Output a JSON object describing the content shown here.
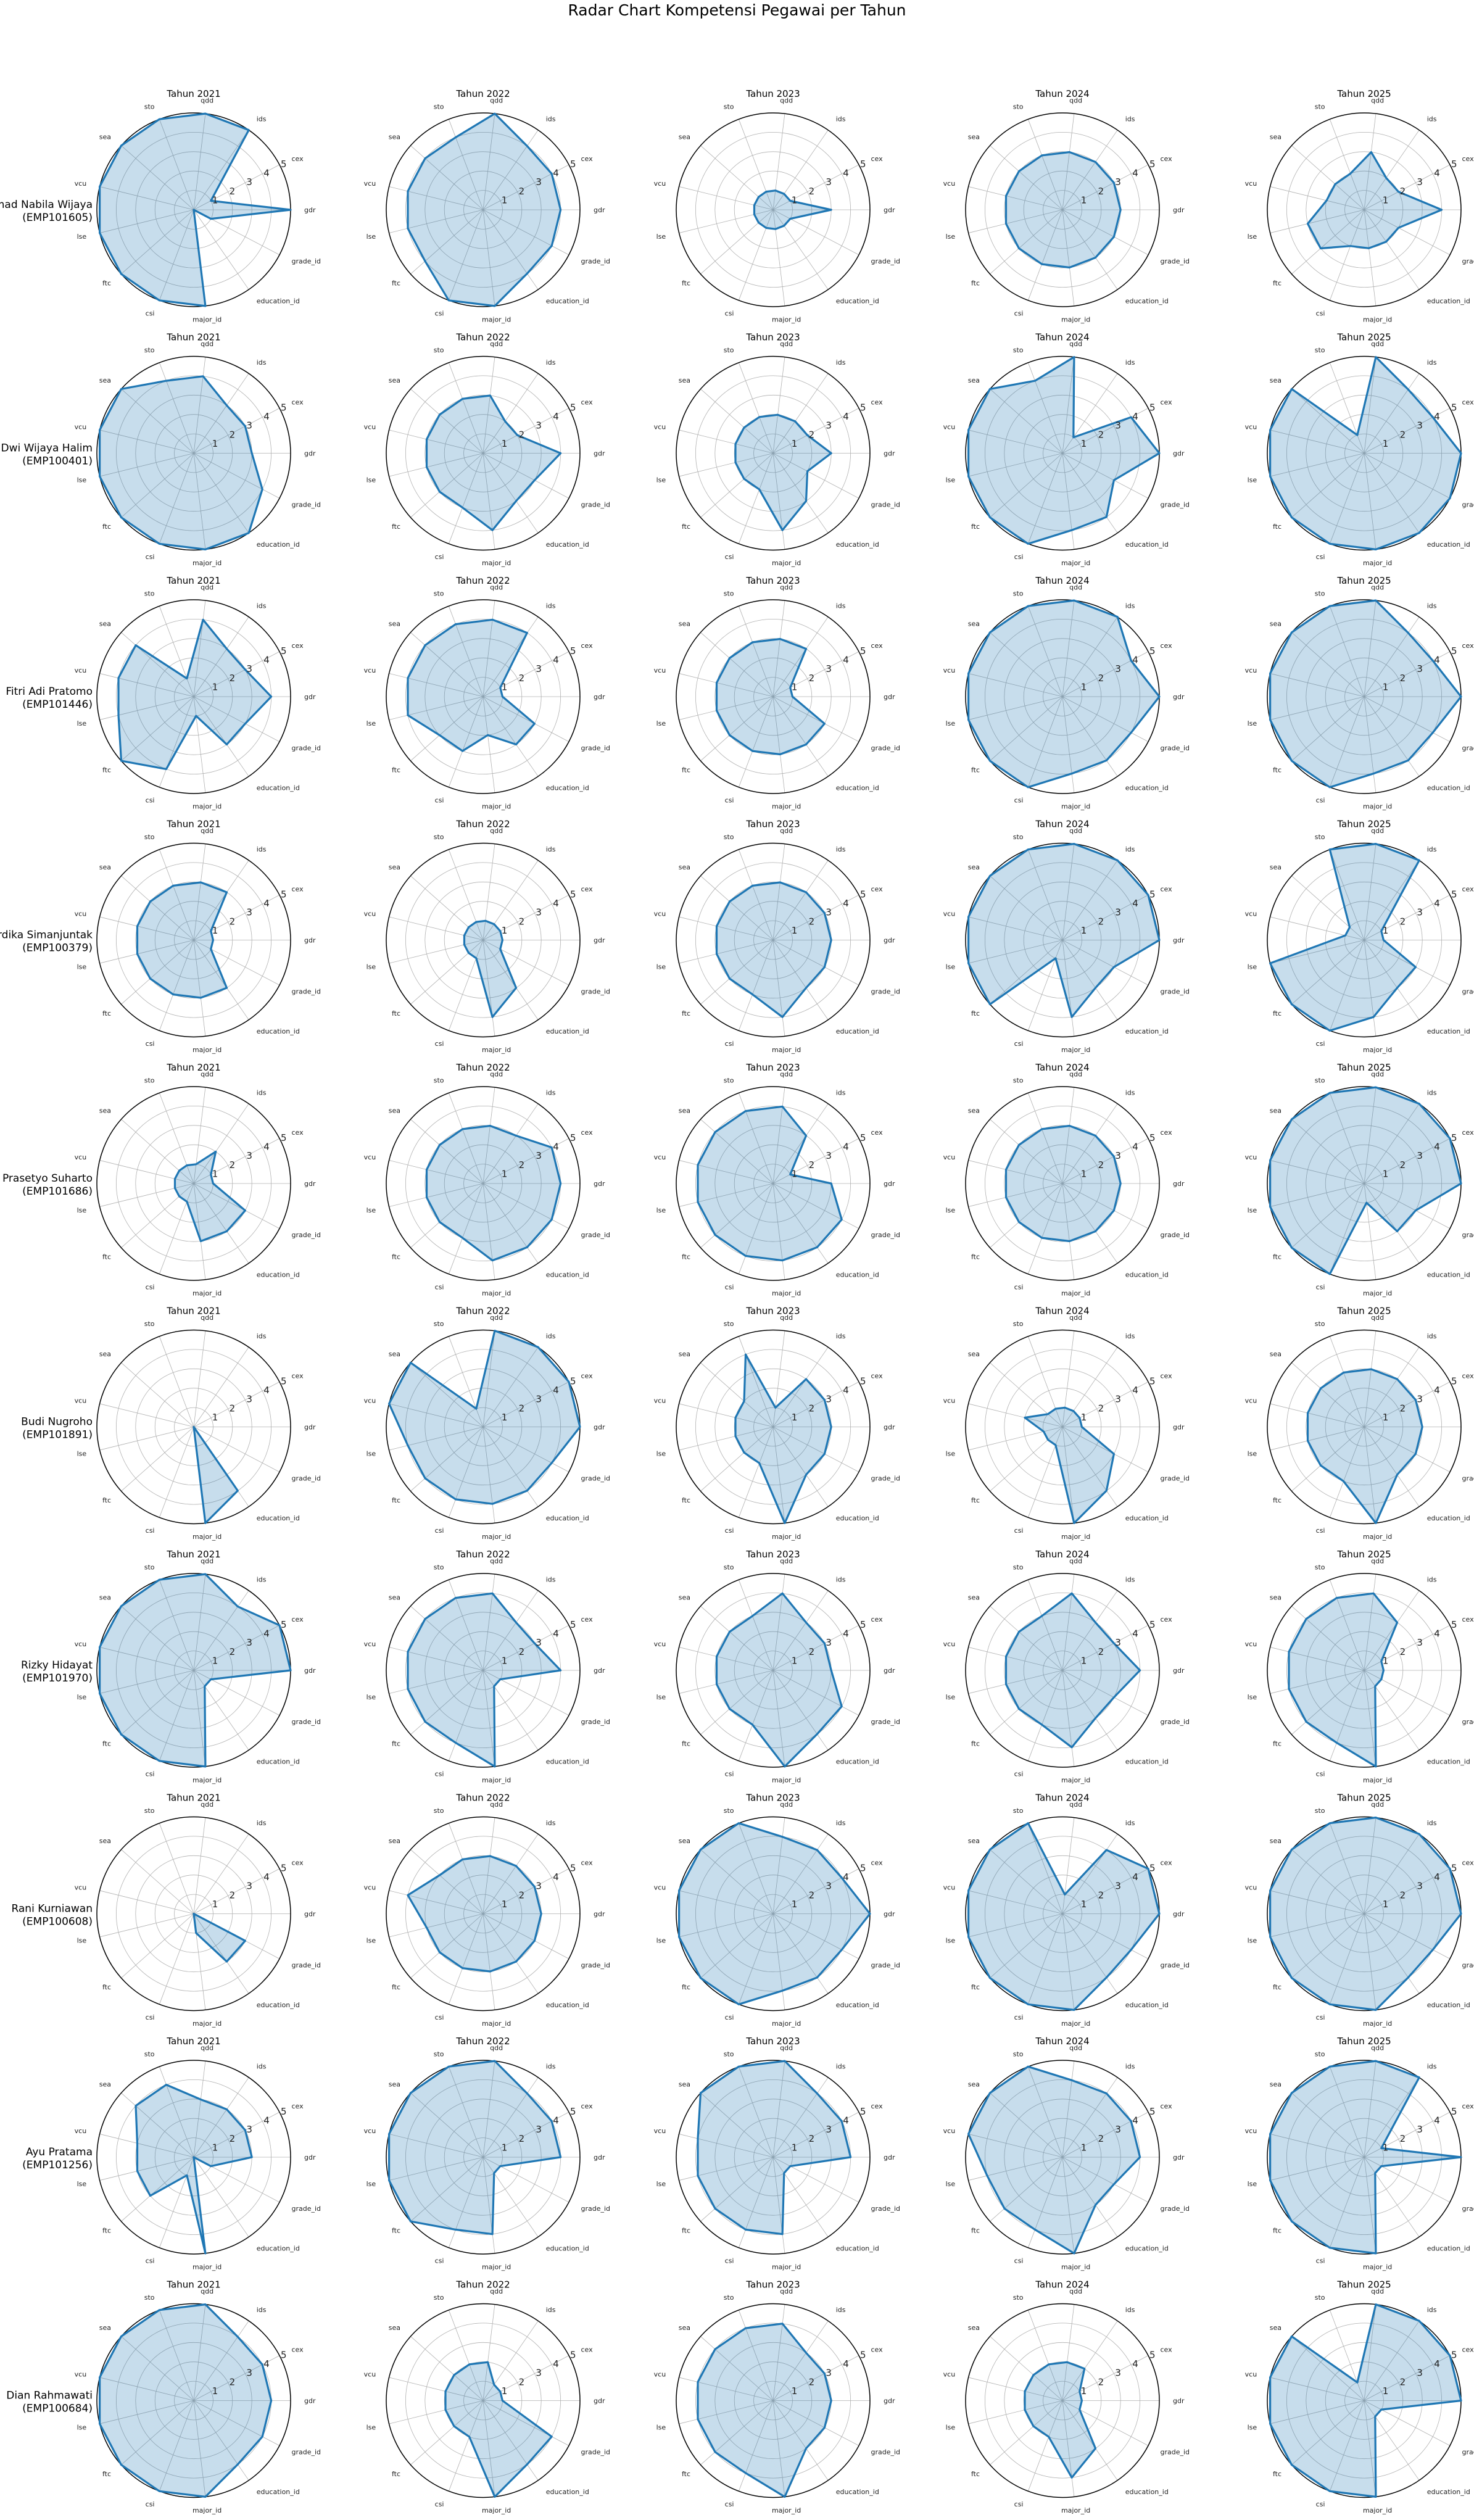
{
  "title": "Radar Chart Kompetensi Pegawai per Tahun",
  "chart_data": {
    "type": "radar",
    "axes": [
      "gdr",
      "cex",
      "ids",
      "qdd",
      "sto",
      "sea",
      "vcu",
      "lse",
      "ftc",
      "csi",
      "major_id",
      "education_id",
      "grade_id"
    ],
    "rlim": [
      0,
      5
    ],
    "radial_ticks": [
      "1",
      "2",
      "3",
      "4",
      "5"
    ],
    "grid": true,
    "colors": {
      "line": "#1f77b4",
      "fill": "#1f77b4"
    },
    "years": [
      "Tahun 2021",
      "Tahun 2022",
      "Tahun 2023",
      "Tahun 2024",
      "Tahun 2025"
    ],
    "employees": [
      {
        "name": "Ahmad Nabila Wijaya",
        "id": "(EMP101605)",
        "values": [
          [
            5.0,
            1.0,
            5.0,
            5.0,
            5.0,
            5.0,
            5.0,
            5.0,
            5.0,
            5.0,
            5.0,
            0.0,
            1.0
          ],
          [
            4.0,
            4.0,
            4.0,
            5.0,
            4.0,
            4.0,
            4.0,
            4.0,
            4.0,
            5.0,
            5.0,
            4.0,
            4.0
          ],
          [
            3.0,
            1.0,
            1.0,
            1.0,
            1.0,
            1.0,
            1.0,
            1.0,
            1.0,
            1.0,
            1.0,
            1.0,
            1.0
          ],
          [
            3.0,
            3.0,
            3.0,
            3.0,
            3.0,
            3.0,
            3.0,
            3.0,
            3.0,
            3.0,
            3.0,
            3.0,
            3.0
          ],
          [
            4.0,
            2.0,
            2.0,
            3.0,
            2.0,
            2.0,
            2.0,
            3.0,
            3.0,
            2.0,
            2.0,
            2.0,
            2.0
          ]
        ]
      },
      {
        "name": "Dwi Wijaya Halim",
        "id": "(EMP100401)",
        "values": [
          [
            3.0,
            3.0,
            3.0,
            4.0,
            4.0,
            5.0,
            5.0,
            5.0,
            5.0,
            5.0,
            5.0,
            5.0,
            4.0
          ],
          [
            4.0,
            2.0,
            2.0,
            3.0,
            3.0,
            3.0,
            3.0,
            3.0,
            3.0,
            3.0,
            4.0,
            3.0,
            3.0
          ],
          [
            3.0,
            2.0,
            2.0,
            2.0,
            2.0,
            2.0,
            2.0,
            2.0,
            2.0,
            2.0,
            4.0,
            3.0,
            2.0
          ],
          [
            5.0,
            4.0,
            1.0,
            5.0,
            4.0,
            5.0,
            5.0,
            5.0,
            5.0,
            5.0,
            4.0,
            4.0,
            3.0
          ],
          [
            5.0,
            4.0,
            4.0,
            5.0,
            1.0,
            5.0,
            5.0,
            5.0,
            5.0,
            5.0,
            5.0,
            5.0,
            5.0
          ]
        ]
      },
      {
        "name": "Fitri Adi Pratomo",
        "id": "(EMP101446)",
        "values": [
          [
            4.0,
            3.0,
            3.0,
            4.0,
            1.0,
            4.0,
            4.0,
            4.0,
            5.0,
            4.0,
            1.0,
            3.0,
            3.0
          ],
          [
            1.0,
            1.0,
            4.0,
            4.0,
            4.0,
            4.0,
            4.0,
            4.0,
            3.0,
            3.0,
            2.0,
            3.0,
            3.0
          ],
          [
            1.0,
            1.0,
            3.0,
            3.0,
            3.0,
            3.0,
            3.0,
            3.0,
            3.0,
            3.0,
            3.0,
            3.0,
            3.0
          ],
          [
            5.0,
            4.0,
            5.0,
            5.0,
            5.0,
            5.0,
            5.0,
            5.0,
            5.0,
            5.0,
            4.0,
            4.0,
            4.0
          ],
          [
            5.0,
            4.0,
            4.0,
            5.0,
            5.0,
            5.0,
            5.0,
            5.0,
            5.0,
            5.0,
            4.0,
            4.0,
            4.0
          ]
        ]
      },
      {
        "name": "Ayu Mahardika Simanjuntak",
        "id": "(EMP100379)",
        "values": [
          [
            1.0,
            1.0,
            3.0,
            3.0,
            3.0,
            3.0,
            3.0,
            3.0,
            3.0,
            3.0,
            3.0,
            3.0,
            1.0
          ],
          [
            1.0,
            1.0,
            1.0,
            1.0,
            1.0,
            1.0,
            1.0,
            1.0,
            1.0,
            1.0,
            4.0,
            3.0,
            1.0
          ],
          [
            3.0,
            3.0,
            3.0,
            3.0,
            3.0,
            3.0,
            3.0,
            3.0,
            3.0,
            3.0,
            4.0,
            3.0,
            3.0
          ],
          [
            5.0,
            5.0,
            5.0,
            5.0,
            5.0,
            5.0,
            5.0,
            5.0,
            5.0,
            1.0,
            4.0,
            3.0,
            3.0
          ],
          [
            1.0,
            1.0,
            5.0,
            5.0,
            5.0,
            1.0,
            1.0,
            5.0,
            5.0,
            5.0,
            4.0,
            3.0,
            3.0
          ]
        ]
      },
      {
        "name": "Prasetyo Suharto",
        "id": "(EMP101686)",
        "values": [
          [
            1.0,
            1.0,
            2.0,
            1.0,
            1.0,
            1.0,
            1.0,
            1.0,
            1.0,
            1.0,
            3.0,
            3.0,
            3.0
          ],
          [
            4.0,
            4.0,
            3.0,
            3.0,
            3.0,
            3.0,
            3.0,
            3.0,
            3.0,
            3.0,
            4.0,
            4.0,
            4.0
          ],
          [
            3.0,
            1.0,
            3.0,
            4.0,
            4.0,
            4.0,
            4.0,
            4.0,
            4.0,
            4.0,
            4.0,
            4.0,
            4.0
          ],
          [
            3.0,
            3.0,
            3.0,
            3.0,
            3.0,
            3.0,
            3.0,
            3.0,
            3.0,
            3.0,
            3.0,
            3.0,
            3.0
          ],
          [
            5.0,
            5.0,
            5.0,
            5.0,
            5.0,
            5.0,
            5.0,
            5.0,
            5.0,
            5.0,
            1.0,
            3.0,
            3.0
          ]
        ]
      },
      {
        "name": "Budi Nugroho",
        "id": "(EMP101891)",
        "values": [
          [
            0.0,
            0.0,
            0.0,
            0.0,
            0.0,
            0.0,
            0.0,
            0.0,
            0.0,
            0.0,
            5.0,
            4.0,
            0.0
          ],
          [
            5.0,
            5.0,
            5.0,
            5.0,
            1.0,
            5.0,
            5.0,
            4.0,
            4.0,
            4.0,
            4.0,
            4.0,
            4.0
          ],
          [
            3.0,
            3.0,
            3.0,
            1.0,
            4.0,
            2.0,
            2.0,
            2.0,
            2.0,
            2.0,
            5.0,
            3.0,
            3.0
          ],
          [
            1.0,
            1.0,
            1.0,
            1.0,
            1.0,
            1.0,
            2.0,
            1.0,
            1.0,
            1.0,
            5.0,
            4.0,
            3.0
          ],
          [
            3.0,
            3.0,
            3.0,
            3.0,
            3.0,
            3.0,
            3.0,
            3.0,
            3.0,
            3.0,
            5.0,
            3.0,
            3.0
          ]
        ]
      },
      {
        "name": "Rizky Hidayat",
        "id": "(EMP101970)",
        "values": [
          [
            5.0,
            5.0,
            4.0,
            5.0,
            5.0,
            5.0,
            5.0,
            5.0,
            5.0,
            5.0,
            5.0,
            1.0,
            1.0
          ],
          [
            4.0,
            3.0,
            3.0,
            4.0,
            4.0,
            4.0,
            4.0,
            4.0,
            4.0,
            4.0,
            5.0,
            1.0,
            1.0
          ],
          [
            3.0,
            3.0,
            3.0,
            4.0,
            3.0,
            3.0,
            3.0,
            3.0,
            3.0,
            3.0,
            5.0,
            4.0,
            4.0
          ],
          [
            4.0,
            3.0,
            3.0,
            4.0,
            3.0,
            3.0,
            3.0,
            3.0,
            3.0,
            3.0,
            4.0,
            3.0,
            3.0
          ],
          [
            1.0,
            1.0,
            3.0,
            4.0,
            4.0,
            4.0,
            4.0,
            4.0,
            4.0,
            4.0,
            5.0,
            1.0,
            1.0
          ]
        ]
      },
      {
        "name": "Rani Kurniawan",
        "id": "(EMP100608)",
        "values": [
          [
            0.0,
            0.0,
            0.0,
            0.0,
            0.0,
            0.0,
            0.0,
            0.0,
            0.0,
            0.0,
            1.0,
            3.0,
            3.0
          ],
          [
            3.0,
            3.0,
            3.0,
            3.0,
            3.0,
            3.0,
            4.0,
            3.0,
            3.0,
            3.0,
            3.0,
            3.0,
            3.0
          ],
          [
            5.0,
            4.0,
            4.0,
            4.0,
            5.0,
            5.0,
            5.0,
            5.0,
            5.0,
            5.0,
            4.0,
            4.0,
            4.0
          ],
          [
            5.0,
            5.0,
            4.0,
            1.0,
            5.0,
            5.0,
            5.0,
            5.0,
            5.0,
            5.0,
            5.0,
            4.0,
            4.0
          ],
          [
            5.0,
            5.0,
            5.0,
            5.0,
            5.0,
            5.0,
            5.0,
            5.0,
            5.0,
            5.0,
            5.0,
            4.0,
            4.0
          ]
        ]
      },
      {
        "name": "Ayu Pratama",
        "id": "(EMP101256)",
        "values": [
          [
            3.0,
            3.0,
            3.0,
            3.0,
            4.0,
            4.0,
            3.0,
            3.0,
            3.0,
            1.0,
            5.0,
            0.0,
            1.0
          ],
          [
            4.0,
            4.0,
            4.0,
            5.0,
            5.0,
            5.0,
            5.0,
            5.0,
            5.0,
            4.0,
            4.0,
            1.0,
            1.0
          ],
          [
            4.0,
            4.0,
            4.0,
            5.0,
            5.0,
            5.0,
            4.0,
            4.0,
            4.0,
            4.0,
            4.0,
            1.0,
            1.0
          ],
          [
            4.0,
            4.0,
            4.0,
            4.0,
            5.0,
            5.0,
            5.0,
            4.0,
            4.0,
            4.0,
            5.0,
            3.0,
            3.0
          ],
          [
            5.0,
            1.0,
            5.0,
            5.0,
            5.0,
            5.0,
            5.0,
            5.0,
            5.0,
            5.0,
            5.0,
            1.0,
            1.0
          ]
        ]
      },
      {
        "name": "Dian Rahmawati",
        "id": "(EMP100684)",
        "values": [
          [
            4.0,
            4.0,
            4.0,
            5.0,
            5.0,
            5.0,
            5.0,
            5.0,
            5.0,
            5.0,
            5.0,
            4.0,
            4.0
          ],
          [
            1.0,
            1.0,
            1.0,
            2.0,
            2.0,
            2.0,
            2.0,
            2.0,
            2.0,
            2.0,
            5.0,
            4.0,
            4.0
          ],
          [
            3.0,
            3.0,
            3.0,
            4.0,
            4.0,
            4.0,
            4.0,
            4.0,
            4.0,
            4.0,
            5.0,
            3.0,
            3.0
          ],
          [
            1.0,
            1.0,
            2.0,
            2.0,
            2.0,
            2.0,
            2.0,
            2.0,
            2.0,
            2.0,
            4.0,
            3.0,
            1.0
          ],
          [
            5.0,
            5.0,
            5.0,
            5.0,
            1.0,
            5.0,
            5.0,
            5.0,
            5.0,
            5.0,
            5.0,
            1.0,
            1.0
          ]
        ]
      }
    ]
  }
}
